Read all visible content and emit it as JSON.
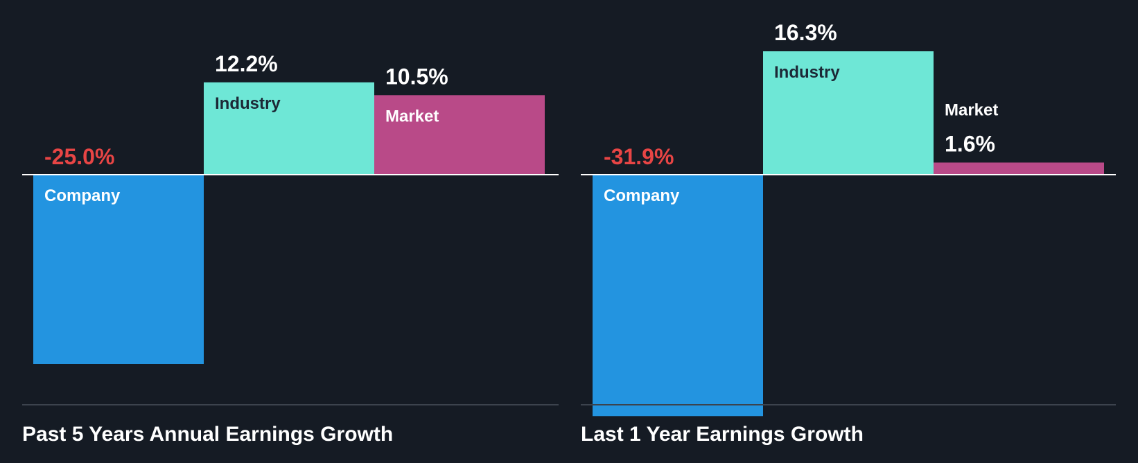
{
  "colors": {
    "background": "#151b24",
    "company": "#2394e0",
    "industry": "#6ee7d6",
    "market": "#b94a88",
    "negative_label": "#e84545",
    "positive_label": "#ffffff",
    "industry_text": "#1c2836",
    "light_text": "#ffffff",
    "zero_line": "#ffffff",
    "baseline": "#3c434d"
  },
  "chart_data": [
    {
      "type": "bar",
      "title": "Past 5 Years Annual Earnings Growth",
      "categories": [
        "Company",
        "Industry",
        "Market"
      ],
      "values": [
        -25.0,
        12.2,
        10.5
      ],
      "value_labels": [
        "-25.0%",
        "12.2%",
        "10.5%"
      ],
      "ylim": [
        -32,
        16.3
      ],
      "xlabel": "",
      "ylabel": "",
      "grid": false,
      "legend": "none"
    },
    {
      "type": "bar",
      "title": "Last 1 Year Earnings Growth",
      "categories": [
        "Company",
        "Industry",
        "Market"
      ],
      "values": [
        -31.9,
        16.3,
        1.6
      ],
      "value_labels": [
        "-31.9%",
        "16.3%",
        "1.6%"
      ],
      "ylim": [
        -32,
        16.3
      ],
      "xlabel": "",
      "ylabel": "",
      "grid": false,
      "legend": "none"
    }
  ]
}
